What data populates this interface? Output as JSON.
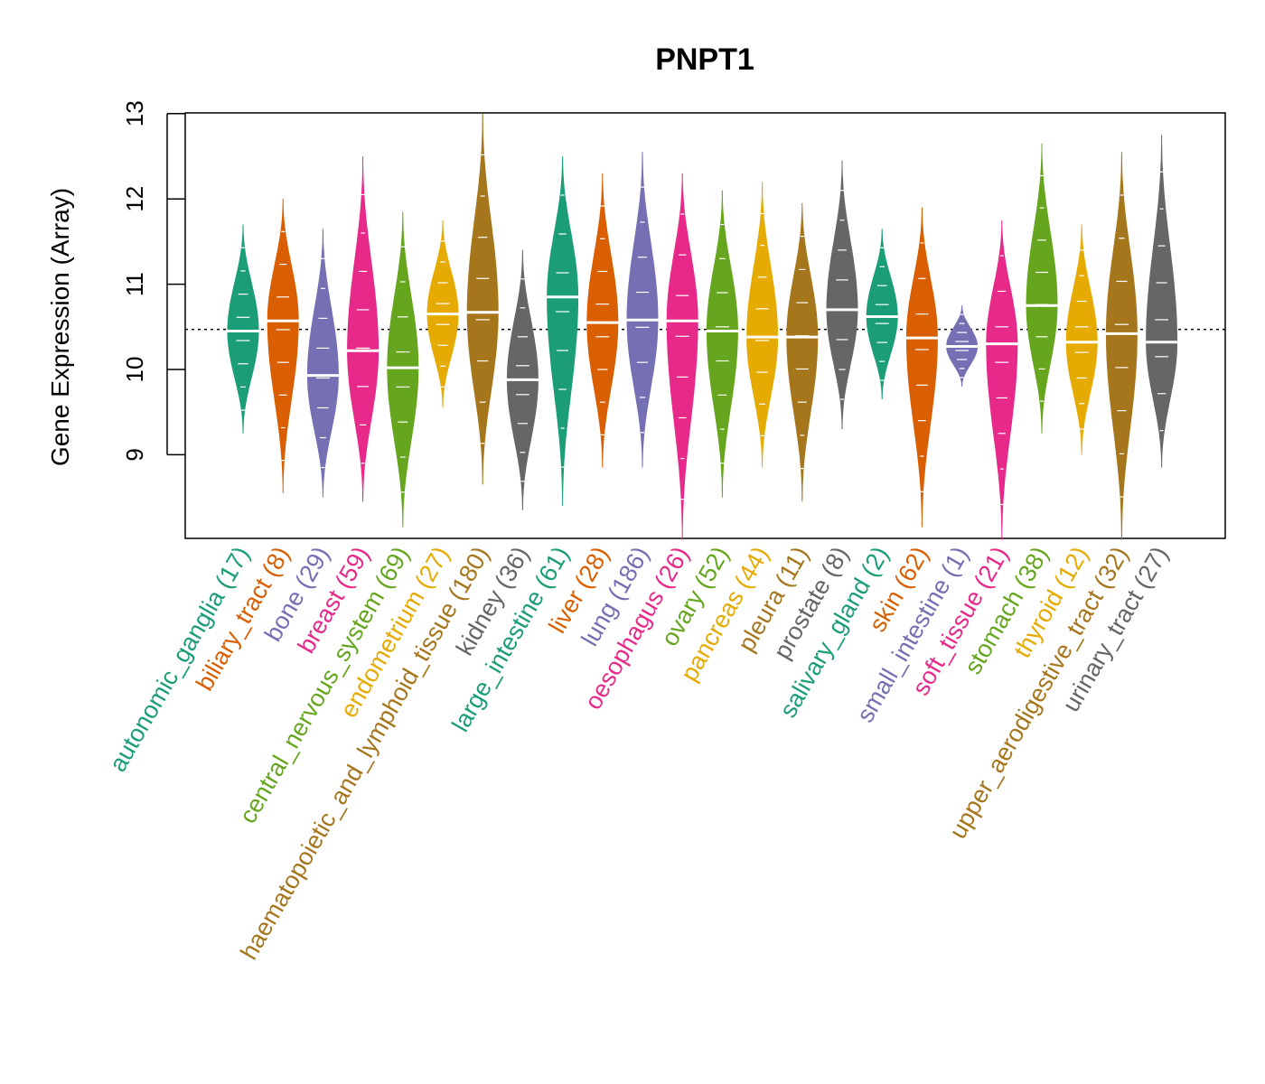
{
  "chart_data": {
    "type": "beanplot",
    "title": "PNPT1",
    "ylabel": "Gene Expression (Array)",
    "xlabel": "",
    "ylim": [
      8,
      13
    ],
    "yticks": [
      9,
      10,
      11,
      12,
      13
    ],
    "overall_mean": 10.47,
    "reference_line_style": "dotted",
    "categories": [
      {
        "label": "autonomic_ganglia (17)",
        "color": "#1B9E77",
        "min": 9.25,
        "max": 11.7,
        "mean": 10.45
      },
      {
        "label": "biliary_tract (8)",
        "color": "#D95F02",
        "min": 8.55,
        "max": 12.0,
        "mean": 10.57
      },
      {
        "label": "bone (29)",
        "color": "#7570B3",
        "min": 8.5,
        "max": 11.65,
        "mean": 9.93
      },
      {
        "label": "breast (59)",
        "color": "#E7298A",
        "min": 8.45,
        "max": 12.5,
        "mean": 10.22
      },
      {
        "label": "central_nervous_system (69)",
        "color": "#66A61E",
        "min": 8.15,
        "max": 11.85,
        "mean": 10.02
      },
      {
        "label": "endometrium (27)",
        "color": "#E6AB02",
        "min": 9.55,
        "max": 11.75,
        "mean": 10.65
      },
      {
        "label": "haematopoietic_and_lymphoid_tissue (180)",
        "color": "#A6761D",
        "min": 8.65,
        "max": 13.0,
        "mean": 10.67
      },
      {
        "label": "kidney (36)",
        "color": "#666666",
        "min": 8.35,
        "max": 11.4,
        "mean": 9.88
      },
      {
        "label": "large_intestine (61)",
        "color": "#1B9E77",
        "min": 8.4,
        "max": 12.5,
        "mean": 10.85
      },
      {
        "label": "liver (28)",
        "color": "#D95F02",
        "min": 8.85,
        "max": 12.3,
        "mean": 10.55
      },
      {
        "label": "lung (186)",
        "color": "#7570B3",
        "min": 8.85,
        "max": 12.55,
        "mean": 10.58
      },
      {
        "label": "oesophagus (26)",
        "color": "#E7298A",
        "min": 8.0,
        "max": 12.3,
        "mean": 10.57
      },
      {
        "label": "ovary (52)",
        "color": "#66A61E",
        "min": 8.5,
        "max": 12.1,
        "mean": 10.45
      },
      {
        "label": "pancreas (44)",
        "color": "#E6AB02",
        "min": 8.85,
        "max": 12.2,
        "mean": 10.38
      },
      {
        "label": "pleura (11)",
        "color": "#A6761D",
        "min": 8.45,
        "max": 11.95,
        "mean": 10.38
      },
      {
        "label": "prostate (8)",
        "color": "#666666",
        "min": 9.3,
        "max": 12.45,
        "mean": 10.7
      },
      {
        "label": "salivary_gland (2)",
        "color": "#1B9E77",
        "min": 9.65,
        "max": 11.65,
        "mean": 10.62
      },
      {
        "label": "skin (62)",
        "color": "#D95F02",
        "min": 8.15,
        "max": 11.9,
        "mean": 10.37
      },
      {
        "label": "small_intestine (1)",
        "color": "#7570B3",
        "min": 9.8,
        "max": 10.75,
        "mean": 10.27
      },
      {
        "label": "soft_tissue (21)",
        "color": "#E7298A",
        "min": 8.0,
        "max": 11.75,
        "mean": 10.3
      },
      {
        "label": "stomach (38)",
        "color": "#66A61E",
        "min": 9.25,
        "max": 12.65,
        "mean": 10.75
      },
      {
        "label": "thyroid (12)",
        "color": "#E6AB02",
        "min": 9.0,
        "max": 11.7,
        "mean": 10.32
      },
      {
        "label": "upper_aerodigestive_tract (32)",
        "color": "#A6761D",
        "min": 8.0,
        "max": 12.55,
        "mean": 10.42
      },
      {
        "label": "urinary_tract (27)",
        "color": "#666666",
        "min": 8.85,
        "max": 12.75,
        "mean": 10.32
      }
    ]
  }
}
